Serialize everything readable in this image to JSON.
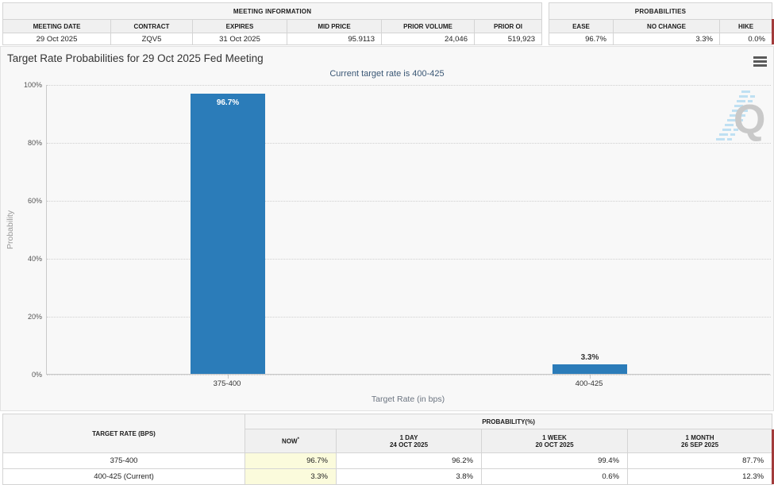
{
  "meeting_info": {
    "title": "MEETING INFORMATION",
    "columns": [
      "MEETING DATE",
      "CONTRACT",
      "EXPIRES",
      "MID PRICE",
      "PRIOR VOLUME",
      "PRIOR OI"
    ],
    "values": [
      "29 Oct 2025",
      "ZQV5",
      "31 Oct 2025",
      "95.9113",
      "24,046",
      "519,923"
    ]
  },
  "probabilities": {
    "title": "PROBABILITIES",
    "columns": [
      "EASE",
      "NO CHANGE",
      "HIKE"
    ],
    "values": [
      "96.7%",
      "3.3%",
      "0.0%"
    ]
  },
  "chart_data": {
    "type": "bar",
    "title": "Target Rate Probabilities for 29 Oct 2025 Fed Meeting",
    "subtitle": "Current target rate is 400-425",
    "categories": [
      "375-400",
      "400-425"
    ],
    "values": [
      96.7,
      3.3
    ],
    "labels": [
      "96.7%",
      "3.3%"
    ],
    "xlabel": "Target Rate (in bps)",
    "ylabel": "Probability",
    "ylim": [
      0,
      100
    ],
    "yticks": [
      0,
      20,
      40,
      60,
      80,
      100
    ],
    "grid": "horizontal-dotted",
    "legend": "none",
    "bar_color": "#2b7cb9",
    "watermark": "Q"
  },
  "history_table": {
    "rate_header": "TARGET RATE (BPS)",
    "group_header": "PROBABILITY(%)",
    "now_header": "NOW",
    "now_note": "*",
    "period_headers": [
      {
        "label": "1 DAY",
        "date": "24 OCT 2025"
      },
      {
        "label": "1 WEEK",
        "date": "20 OCT 2025"
      },
      {
        "label": "1 MONTH",
        "date": "26 SEP 2025"
      }
    ],
    "rows": [
      {
        "rate": "375-400",
        "now": "96.7%",
        "day": "96.2%",
        "week": "99.4%",
        "month": "87.7%"
      },
      {
        "rate": "400-425 (Current)",
        "now": "3.3%",
        "day": "3.8%",
        "week": "0.6%",
        "month": "12.3%"
      }
    ]
  },
  "colors": {
    "bar": "#2b7cb9",
    "subtitle_text": "#3a5775",
    "now_highlight": "#fbfbdc",
    "red_edge": "#a23b3b"
  }
}
